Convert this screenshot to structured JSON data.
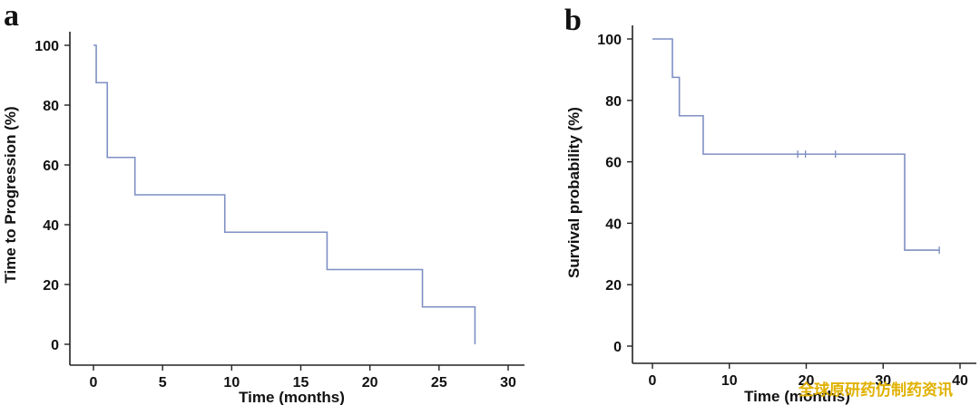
{
  "chart_data": [
    {
      "panel": "a",
      "type": "line",
      "step": "post",
      "xlabel": "Time (months)",
      "ylabel": "Time to Progression (%)",
      "xlim": [
        0,
        30
      ],
      "ylim": [
        0,
        100
      ],
      "xticks": [
        0,
        5,
        10,
        15,
        20,
        25,
        30
      ],
      "yticks": [
        0,
        20,
        40,
        60,
        80,
        100
      ],
      "series": [
        {
          "x": [
            0,
            0.2,
            0.9,
            1.0,
            3.0,
            9.5,
            16.9,
            23.8,
            27.6
          ],
          "y": [
            100,
            87.5,
            87.5,
            62.5,
            50,
            37.5,
            25,
            12.5,
            0
          ],
          "censored": []
        }
      ]
    },
    {
      "panel": "b",
      "type": "line",
      "step": "post",
      "xlabel": "Time (months)",
      "ylabel": "Survival probability (%)",
      "xlim": [
        0,
        40
      ],
      "ylim": [
        0,
        100
      ],
      "xticks": [
        0,
        10,
        20,
        30,
        40
      ],
      "yticks": [
        0,
        20,
        40,
        60,
        80,
        100
      ],
      "series": [
        {
          "x": [
            0,
            2.6,
            3.5,
            6.6,
            32.8,
            37.3
          ],
          "y": [
            100,
            87.5,
            75,
            62.5,
            31.25,
            31.25
          ],
          "censored": [
            [
              18.9,
              62.5
            ],
            [
              19.9,
              62.5
            ],
            [
              23.8,
              62.5
            ],
            [
              37.3,
              31.25
            ]
          ]
        }
      ]
    }
  ],
  "watermark": "全球原研药仿制药资讯"
}
